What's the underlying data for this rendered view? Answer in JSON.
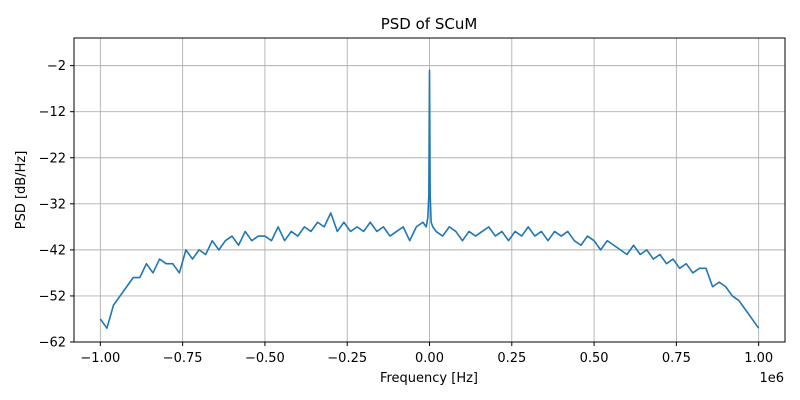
{
  "chart_data": {
    "type": "line",
    "title": "PSD of SCuM",
    "xlabel": "Frequency [Hz]",
    "ylabel": "PSD [dB/Hz]",
    "x_offset_label": "1e6",
    "xlim": [
      -1.08,
      1.08
    ],
    "ylim": [
      -62,
      4
    ],
    "x_scale_factor": 1000000,
    "grid": true,
    "line_color": "#1f77b4",
    "xticks": [
      -1.0,
      -0.75,
      -0.5,
      -0.25,
      0.0,
      0.25,
      0.5,
      0.75,
      1.0
    ],
    "xtick_labels": [
      "−1.00",
      "−0.75",
      "−0.50",
      "−0.25",
      "0.00",
      "0.25",
      "0.50",
      "0.75",
      "1.00"
    ],
    "yticks": [
      -2,
      -12,
      -22,
      -32,
      -42,
      -52,
      -62
    ],
    "ytick_labels": [
      "−2",
      "−12",
      "−22",
      "−32",
      "−42",
      "−52",
      "−62"
    ],
    "series": [
      {
        "x": [
          -1.0,
          -0.98,
          -0.96,
          -0.94,
          -0.92,
          -0.9,
          -0.88,
          -0.86,
          -0.84,
          -0.82,
          -0.8,
          -0.78,
          -0.76,
          -0.74,
          -0.72,
          -0.7,
          -0.68,
          -0.66,
          -0.64,
          -0.62,
          -0.6,
          -0.58,
          -0.56,
          -0.54,
          -0.52,
          -0.5,
          -0.48,
          -0.46,
          -0.44,
          -0.42,
          -0.4,
          -0.38,
          -0.36,
          -0.34,
          -0.32,
          -0.3,
          -0.28,
          -0.26,
          -0.24,
          -0.22,
          -0.2,
          -0.18,
          -0.16,
          -0.14,
          -0.12,
          -0.1,
          -0.08,
          -0.06,
          -0.04,
          -0.02,
          -0.01,
          -0.005,
          -0.002,
          0.0,
          0.002,
          0.005,
          0.01,
          0.02,
          0.04,
          0.06,
          0.08,
          0.1,
          0.12,
          0.14,
          0.16,
          0.18,
          0.2,
          0.22,
          0.24,
          0.26,
          0.28,
          0.3,
          0.32,
          0.34,
          0.36,
          0.38,
          0.4,
          0.42,
          0.44,
          0.46,
          0.48,
          0.5,
          0.52,
          0.54,
          0.56,
          0.58,
          0.6,
          0.62,
          0.64,
          0.66,
          0.68,
          0.7,
          0.72,
          0.74,
          0.76,
          0.78,
          0.8,
          0.82,
          0.84,
          0.86,
          0.88,
          0.9,
          0.92,
          0.94,
          0.96,
          0.98,
          1.0
        ],
        "y": [
          -57,
          -59,
          -54,
          -52,
          -50,
          -48,
          -48,
          -45,
          -47,
          -44,
          -45,
          -45,
          -47,
          -42,
          -44,
          -42,
          -43,
          -40,
          -42,
          -40,
          -39,
          -41,
          -38,
          -40,
          -39,
          -39,
          -40,
          -37,
          -40,
          -38,
          -39,
          -37,
          -38,
          -36,
          -37,
          -34,
          -38,
          -36,
          -38,
          -37,
          -38,
          -36,
          -38,
          -37,
          -39,
          -38,
          -37,
          -40,
          -37,
          -36,
          -37,
          -35,
          -30,
          -3,
          -30,
          -36,
          -37,
          -38,
          -39,
          -37,
          -38,
          -40,
          -38,
          -39,
          -38,
          -37,
          -39,
          -38,
          -40,
          -38,
          -39,
          -37,
          -39,
          -38,
          -40,
          -38,
          -39,
          -38,
          -40,
          -41,
          -39,
          -40,
          -42,
          -40,
          -41,
          -42,
          -43,
          -41,
          -43,
          -42,
          -44,
          -43,
          -45,
          -44,
          -46,
          -45,
          -47,
          -46,
          -46,
          -50,
          -49,
          -50,
          -52,
          -53,
          -55,
          -57,
          -59
        ]
      }
    ]
  }
}
